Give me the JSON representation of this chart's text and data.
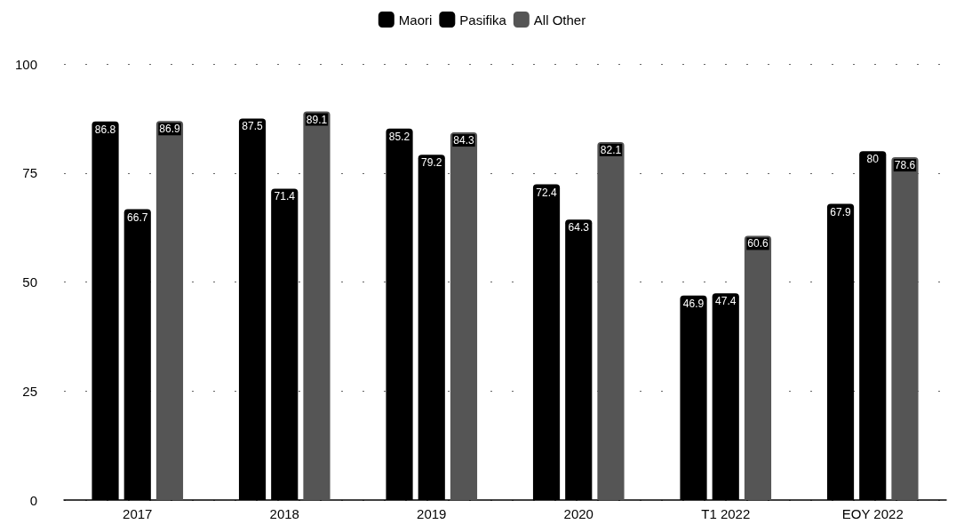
{
  "chart_data": {
    "type": "bar",
    "categories": [
      "2017",
      "2018",
      "2019",
      "2020",
      "T1 2022",
      "EOY 2022"
    ],
    "series": [
      {
        "name": "Maori",
        "color": "#000000",
        "values": [
          86.8,
          87.5,
          85.2,
          72.4,
          46.9,
          67.9
        ]
      },
      {
        "name": "Pasifika",
        "color": "#000000",
        "values": [
          66.7,
          71.4,
          79.2,
          64.3,
          47.4,
          80
        ]
      },
      {
        "name": "All Other",
        "color": "#555555",
        "values": [
          86.9,
          89.1,
          84.3,
          82.1,
          60.6,
          78.6
        ]
      }
    ],
    "ylim": [
      0,
      100
    ],
    "yticks": [
      0,
      25,
      50,
      75,
      100
    ],
    "grid": "y",
    "legend": "top",
    "data_labels": true
  }
}
